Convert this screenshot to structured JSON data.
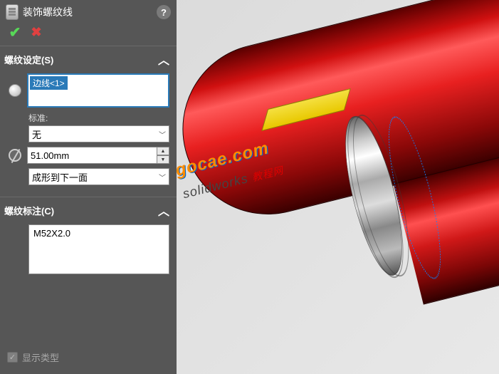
{
  "panel": {
    "title": "装饰螺纹线",
    "help": "?",
    "colors": {
      "bg": "#565656",
      "accent": "#2a7ab8",
      "ok": "#58d858",
      "cancel": "#e04040"
    }
  },
  "sections": {
    "thread_settings": {
      "header": "螺纹设定(S)",
      "selection_item": "边线<1>",
      "standard_label": "标准:",
      "standard_value": "无",
      "diameter_value": "51.00mm",
      "end_condition": "成形到下一面"
    },
    "thread_callout": {
      "header": "螺纹标注(C)",
      "value": "M52X2.0"
    }
  },
  "footer": {
    "show_type_label": "显示类型"
  },
  "watermark": {
    "line1": "gocae.com",
    "line2_en": "solidworks ",
    "line2_cn": "教程网"
  }
}
